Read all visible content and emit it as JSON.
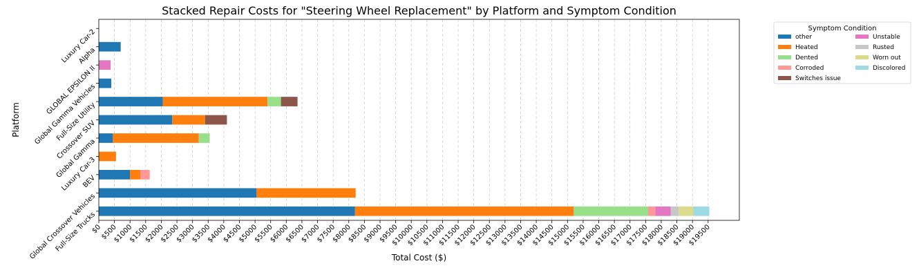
{
  "chart_data": {
    "type": "bar",
    "orientation": "horizontal",
    "stacked": true,
    "title": "Stacked Repair Costs for \"Steering Wheel Replacement\" by Platform and Symptom Condition",
    "xlabel": "Total Cost ($)",
    "ylabel": "Platform",
    "xlim": [
      0,
      20500
    ],
    "x_tick_values": [
      0,
      500,
      1000,
      1500,
      2000,
      2500,
      3000,
      3500,
      4000,
      4500,
      5000,
      5500,
      6000,
      6500,
      7000,
      7500,
      8000,
      8500,
      9000,
      9500,
      10000,
      10500,
      11000,
      11500,
      12000,
      12500,
      13000,
      13500,
      14000,
      14500,
      15000,
      15500,
      16000,
      16500,
      17000,
      17500,
      18000,
      18500,
      19000,
      19500
    ],
    "x_tick_labels": [
      "$0",
      "$500",
      "$1000",
      "$1500",
      "$2000",
      "$2500",
      "$3000",
      "$3500",
      "$4000",
      "$4500",
      "$5000",
      "$5500",
      "$6000",
      "$6500",
      "$7000",
      "$7500",
      "$8000",
      "$8500",
      "$9000",
      "$9500",
      "$10000",
      "$10500",
      "$11000",
      "$11500",
      "$12000",
      "$12500",
      "$13000",
      "$13500",
      "$14000",
      "$14500",
      "$15000",
      "$15500",
      "$16000",
      "$16500",
      "$17000",
      "$17500",
      "$18000",
      "$18500",
      "$19000",
      "$19500"
    ],
    "grid": "x-dashed",
    "categories": [
      "Full-Size Trucks",
      "Global Crossover Vehicles",
      "BEV",
      "Luxury Car-3",
      "Global Gamma",
      "Crossover SUV",
      "Full-Size Utility",
      "Global Gamma Vehicles",
      "GLOBAL EPSILON II",
      "Alpha",
      "Luxury Car-2"
    ],
    "legend": {
      "title": "Symptom Condition",
      "placement": "outside-upper-right",
      "columns": 2
    },
    "series": [
      {
        "name": "other",
        "color": "#1f77b4",
        "values": [
          8200,
          5050,
          1000,
          0,
          450,
          2350,
          2050,
          400,
          0,
          700,
          0
        ]
      },
      {
        "name": "Heated",
        "color": "#ff7f0e",
        "values": [
          7000,
          3170,
          330,
          550,
          2750,
          1050,
          3350,
          0,
          0,
          0,
          0
        ]
      },
      {
        "name": "Dented",
        "color": "#98df8a",
        "values": [
          2380,
          0,
          0,
          0,
          350,
          0,
          430,
          0,
          0,
          0,
          0
        ]
      },
      {
        "name": "Corroded",
        "color": "#ff9896",
        "values": [
          230,
          0,
          300,
          0,
          0,
          0,
          0,
          0,
          0,
          0,
          0
        ]
      },
      {
        "name": "Switches issue",
        "color": "#8c564b",
        "values": [
          0,
          0,
          0,
          0,
          0,
          700,
          530,
          0,
          0,
          0,
          0
        ]
      },
      {
        "name": "Unstable",
        "color": "#e377c2",
        "values": [
          490,
          0,
          0,
          0,
          0,
          0,
          0,
          0,
          380,
          0,
          0
        ]
      },
      {
        "name": "Rusted",
        "color": "#c7c7c7",
        "values": [
          260,
          0,
          0,
          0,
          0,
          0,
          0,
          0,
          0,
          0,
          0
        ]
      },
      {
        "name": "Worn out",
        "color": "#dbdb8d",
        "values": [
          470,
          0,
          0,
          0,
          0,
          0,
          0,
          0,
          0,
          0,
          0
        ]
      },
      {
        "name": "Discolored",
        "color": "#9edae5",
        "values": [
          510,
          0,
          0,
          0,
          0,
          0,
          0,
          0,
          0,
          0,
          0
        ]
      }
    ]
  }
}
